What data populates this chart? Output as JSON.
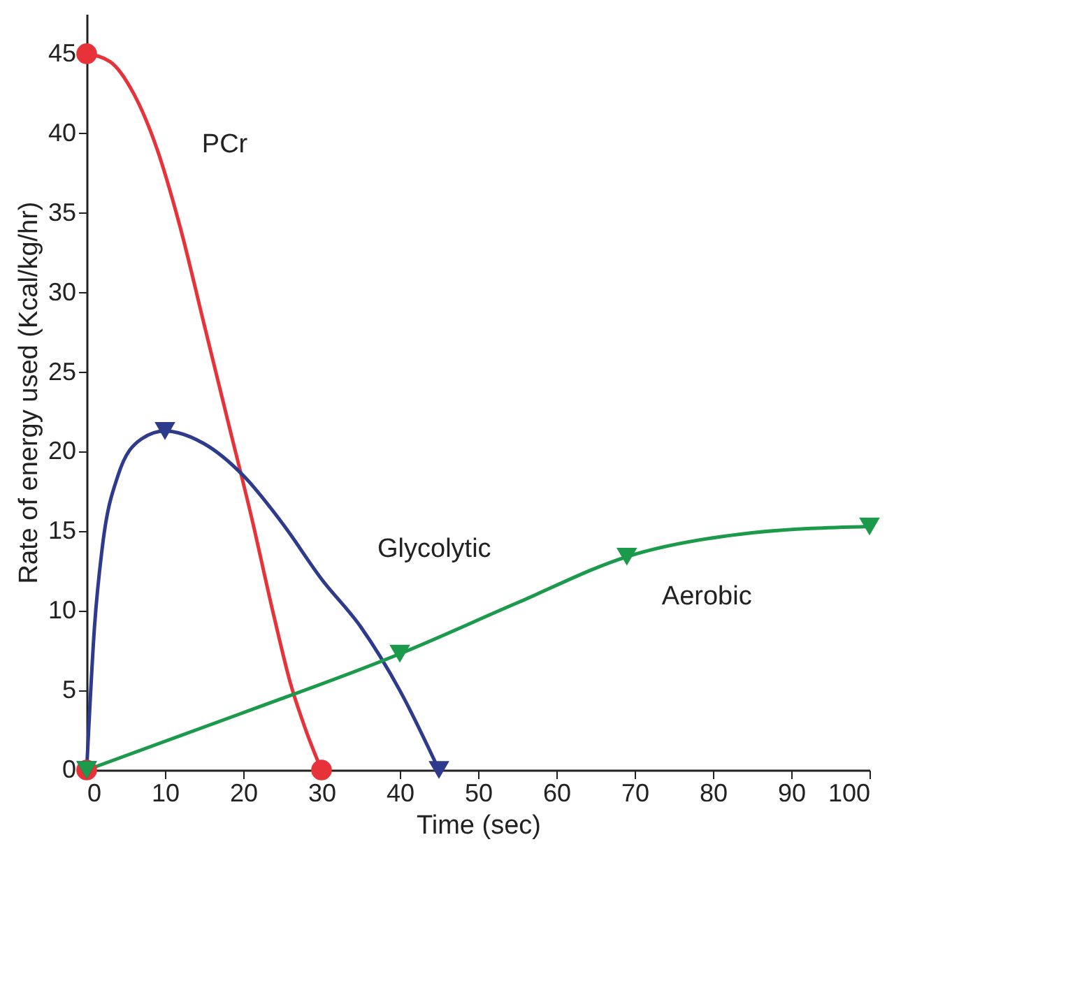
{
  "chart_data": {
    "type": "line",
    "xlabel": "Time (sec)",
    "ylabel": "Rate of energy used (Kcal/kg/hr)",
    "xlim": [
      0,
      100
    ],
    "ylim": [
      0,
      47.5
    ],
    "xticks": [
      0,
      10,
      20,
      30,
      40,
      50,
      60,
      70,
      80,
      90,
      100
    ],
    "yticks": [
      0,
      5,
      10,
      15,
      20,
      25,
      30,
      35,
      40,
      45
    ],
    "grid": false,
    "series": [
      {
        "name": "PCr",
        "color": "#e8323a",
        "marker": "none",
        "x": [
          0,
          3,
          6,
          9,
          12,
          15,
          18,
          21,
          24,
          26,
          28,
          30
        ],
        "values": [
          45,
          44.5,
          42.5,
          39,
          34,
          28,
          22,
          16,
          9.5,
          5.5,
          2.5,
          0
        ]
      },
      {
        "name": "Glycolytic",
        "color": "#2e3a8c",
        "marker": "none",
        "x": [
          0,
          1,
          2,
          4,
          7,
          10,
          15,
          20,
          25,
          30,
          35,
          40,
          45
        ],
        "values": [
          0,
          9,
          14,
          18.5,
          20.8,
          21.3,
          20.5,
          18.5,
          15.5,
          12,
          9,
          5,
          0
        ]
      },
      {
        "name": "Aerobic",
        "color": "#1a9a4a",
        "marker": "none",
        "x": [
          0,
          20,
          40,
          55,
          69,
          85,
          100
        ],
        "values": [
          0,
          3.6,
          7.3,
          10.5,
          13.4,
          14.9,
          15.3
        ]
      },
      {
        "type": "scatter",
        "color": "#e8323a",
        "marker": "circle",
        "x": [
          0,
          0,
          30
        ],
        "values": [
          0,
          45,
          0
        ]
      },
      {
        "type": "scatter",
        "color": "#2e3a8c",
        "marker": "triangle",
        "x": [
          0,
          10,
          45
        ],
        "values": [
          0,
          21.3,
          0
        ]
      },
      {
        "type": "scatter",
        "color": "#1a9a4a",
        "marker": "triangle",
        "x": [
          0,
          40,
          69,
          100
        ],
        "values": [
          0,
          7.3,
          13.4,
          15.3
        ]
      }
    ]
  }
}
